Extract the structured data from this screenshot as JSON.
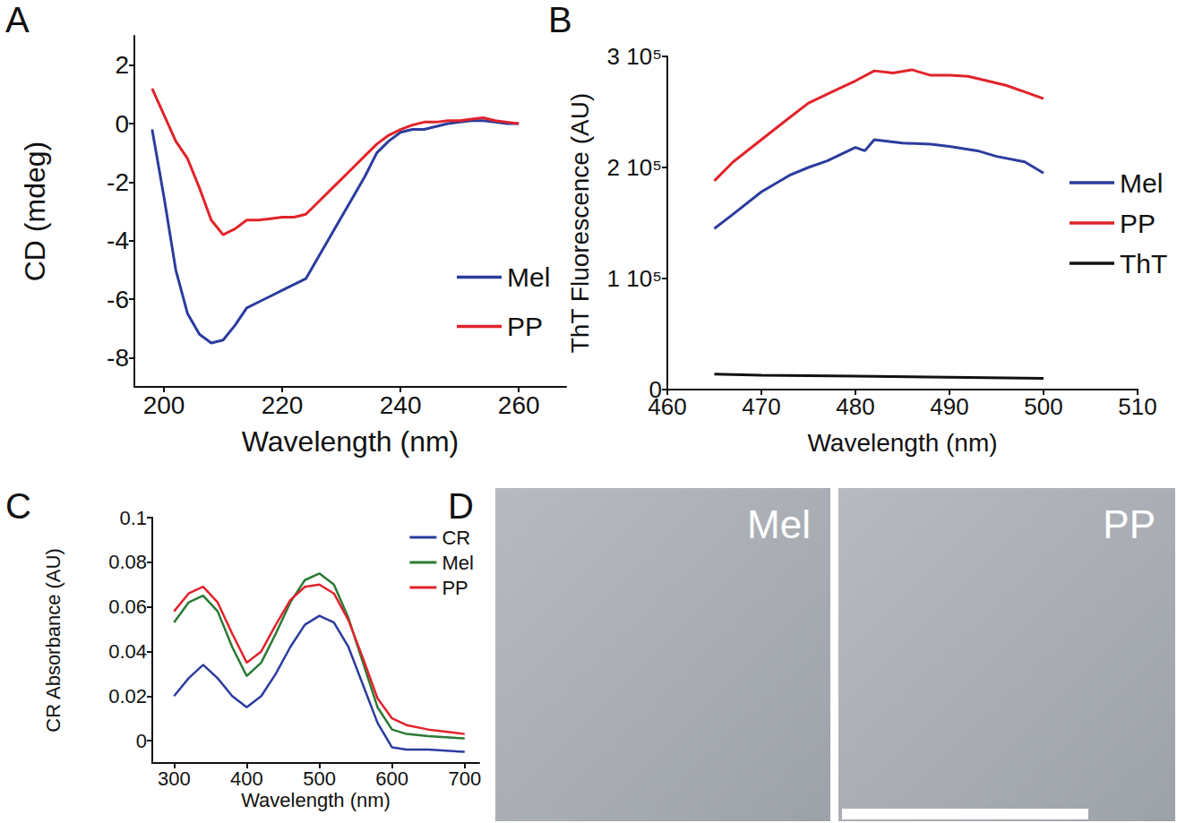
{
  "chart_data": [
    {
      "type": "line",
      "panel_label": "A",
      "x_label": "Wavelength (nm)",
      "y_label": "CD (mdeg)",
      "xlim": [
        195,
        268
      ],
      "xticks": [
        200,
        220,
        240,
        260
      ],
      "ylim": [
        -9,
        3
      ],
      "yticks": [
        -8,
        -6,
        -4,
        -2,
        0,
        2
      ],
      "grid": false,
      "legend": "lower right",
      "series": [
        {
          "name": "Mel",
          "color": "#2b3c9e",
          "x": [
            198,
            200,
            202,
            204,
            206,
            208,
            210,
            212,
            214,
            216,
            218,
            220,
            222,
            224,
            226,
            228,
            230,
            232,
            234,
            236,
            238,
            240,
            242,
            244,
            246,
            248,
            250,
            252,
            254,
            256,
            258,
            260
          ],
          "values": [
            -0.2,
            -2.5,
            -5,
            -6.5,
            -7.2,
            -7.5,
            -7.4,
            -6.9,
            -6.3,
            -6.1,
            -5.9,
            -5.7,
            -5.5,
            -5.3,
            -4.6,
            -3.9,
            -3.2,
            -2.5,
            -1.8,
            -1.0,
            -0.6,
            -0.3,
            -0.2,
            -0.2,
            -0.1,
            0,
            0.05,
            0.1,
            0.1,
            0.05,
            0,
            0
          ]
        },
        {
          "name": "PP",
          "color": "#e1232b",
          "x": [
            198,
            200,
            202,
            204,
            206,
            208,
            210,
            212,
            214,
            216,
            218,
            220,
            222,
            224,
            226,
            228,
            230,
            232,
            234,
            236,
            238,
            240,
            242,
            244,
            246,
            248,
            250,
            252,
            254,
            256,
            258,
            260
          ],
          "values": [
            1.2,
            0.3,
            -0.6,
            -1.2,
            -2.2,
            -3.3,
            -3.8,
            -3.6,
            -3.3,
            -3.3,
            -3.25,
            -3.2,
            -3.2,
            -3.1,
            -2.7,
            -2.3,
            -1.9,
            -1.5,
            -1.1,
            -0.7,
            -0.4,
            -0.2,
            -0.05,
            0.05,
            0.05,
            0.1,
            0.1,
            0.15,
            0.2,
            0.1,
            0.05,
            0
          ]
        }
      ]
    },
    {
      "type": "line",
      "panel_label": "B",
      "x_label": "Wavelength (nm)",
      "y_label": "ThT Fluorescence (AU)",
      "xlim": [
        460,
        510
      ],
      "xticks": [
        460,
        470,
        480,
        490,
        500,
        510
      ],
      "ylim": [
        0,
        300000
      ],
      "yticks": [
        0,
        {
          "value": 100000,
          "label": "1 10⁵"
        },
        {
          "value": 200000,
          "label": "2 10⁵"
        },
        {
          "value": 300000,
          "label": "3 10⁵"
        }
      ],
      "grid": false,
      "legend": "right",
      "series": [
        {
          "name": "Mel",
          "color": "#2b3c9e",
          "x": [
            465,
            467,
            470,
            473,
            475,
            477,
            480,
            481,
            482,
            485,
            488,
            490,
            493,
            495,
            498,
            500
          ],
          "values": [
            145000,
            158000,
            178000,
            193000,
            200000,
            206000,
            218000,
            215000,
            225000,
            222000,
            221000,
            219000,
            215000,
            210000,
            205000,
            195000
          ]
        },
        {
          "name": "PP",
          "color": "#e1232b",
          "x": [
            465,
            467,
            470,
            473,
            475,
            478,
            480,
            482,
            484,
            486,
            488,
            490,
            492,
            494,
            496,
            498,
            500
          ],
          "values": [
            188000,
            205000,
            225000,
            245000,
            258000,
            270000,
            278000,
            287000,
            285000,
            288000,
            283000,
            283000,
            282000,
            278000,
            274000,
            268000,
            262000
          ]
        },
        {
          "name": "ThT",
          "color": "#111111",
          "x": [
            465,
            470,
            480,
            490,
            500
          ],
          "values": [
            14000,
            13000,
            12000,
            11000,
            10000
          ]
        }
      ]
    },
    {
      "type": "line",
      "panel_label": "C",
      "x_label": "Wavelength (nm)",
      "y_label": "CR Absorbance (AU)",
      "xlim": [
        270,
        720
      ],
      "xticks": [
        300,
        400,
        500,
        600,
        700
      ],
      "ylim": [
        -0.01,
        0.1
      ],
      "yticks": [
        0,
        0.02,
        0.04,
        0.06,
        0.08,
        0.1
      ],
      "grid": false,
      "legend": "upper right",
      "series": [
        {
          "name": "CR",
          "color": "#2b3c9e",
          "x": [
            300,
            320,
            340,
            360,
            380,
            400,
            420,
            440,
            460,
            480,
            500,
            520,
            540,
            560,
            580,
            600,
            620,
            650,
            700
          ],
          "values": [
            0.02,
            0.028,
            0.034,
            0.028,
            0.02,
            0.015,
            0.02,
            0.03,
            0.042,
            0.052,
            0.056,
            0.053,
            0.042,
            0.025,
            0.008,
            -0.003,
            -0.004,
            -0.004,
            -0.005
          ]
        },
        {
          "name": "Mel",
          "color": "#2a7a34",
          "x": [
            300,
            320,
            340,
            360,
            380,
            400,
            420,
            440,
            460,
            480,
            500,
            520,
            540,
            560,
            580,
            600,
            620,
            650,
            700
          ],
          "values": [
            0.053,
            0.062,
            0.065,
            0.058,
            0.042,
            0.029,
            0.035,
            0.048,
            0.062,
            0.072,
            0.075,
            0.07,
            0.055,
            0.035,
            0.015,
            0.005,
            0.003,
            0.002,
            0.001
          ]
        },
        {
          "name": "PP",
          "color": "#e1232b",
          "x": [
            300,
            320,
            340,
            360,
            380,
            400,
            420,
            440,
            460,
            480,
            500,
            520,
            540,
            560,
            580,
            600,
            620,
            650,
            700
          ],
          "values": [
            0.058,
            0.066,
            0.069,
            0.062,
            0.048,
            0.035,
            0.04,
            0.052,
            0.063,
            0.069,
            0.07,
            0.066,
            0.054,
            0.037,
            0.019,
            0.01,
            0.007,
            0.005,
            0.003
          ]
        }
      ]
    }
  ],
  "image_panel": {
    "panel_label": "D",
    "images": [
      {
        "label": "Mel"
      },
      {
        "label": "PP"
      }
    ]
  }
}
